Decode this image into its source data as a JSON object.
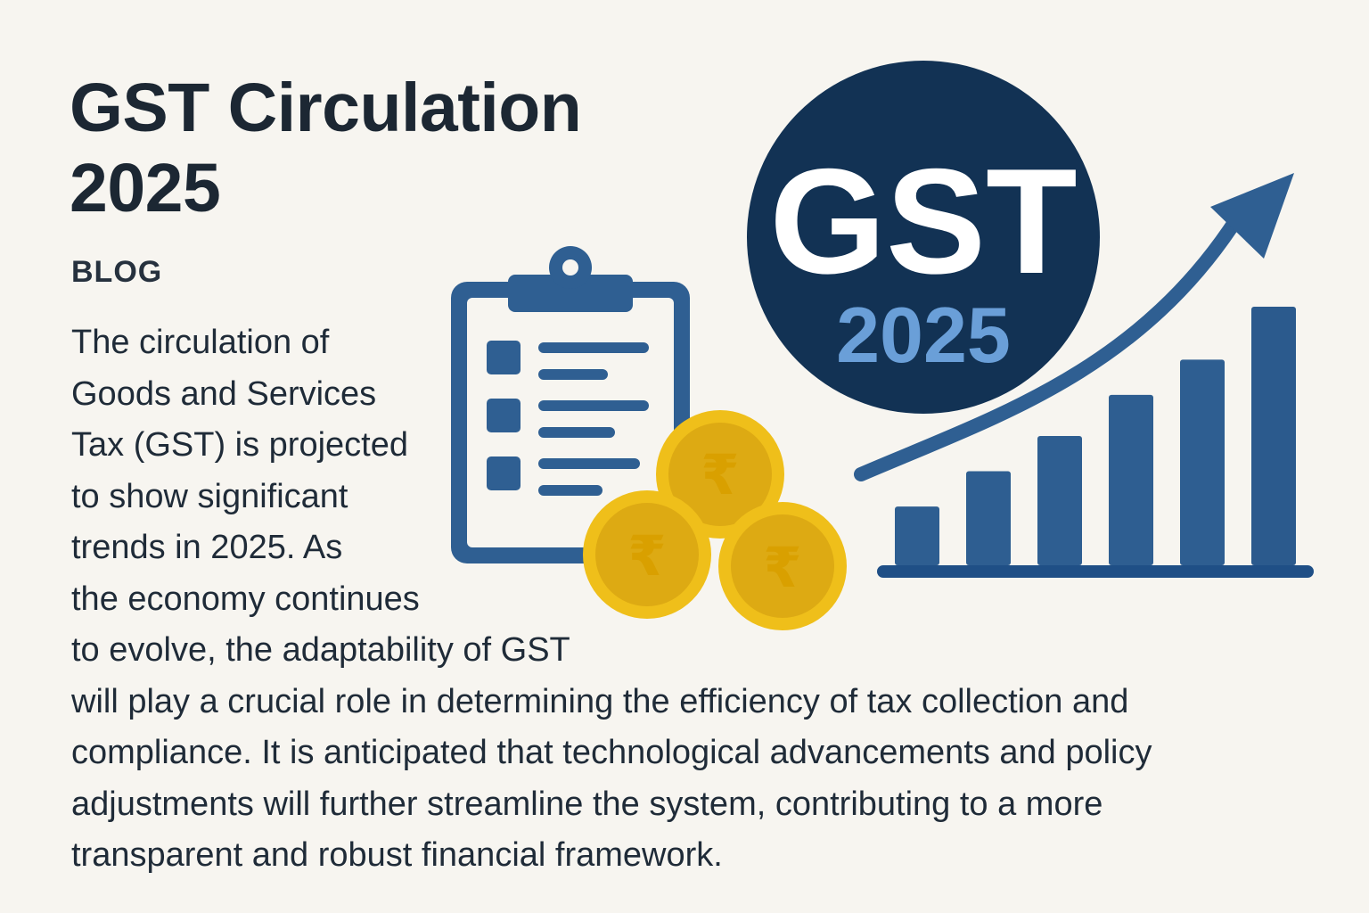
{
  "header": {
    "title": "GST Circulation 2025",
    "category": "BLOG"
  },
  "article": {
    "lines": [
      "The circulation of",
      "Goods and Services",
      "Tax (GST) is projected",
      "to show significant",
      "trends in 2025. As",
      "the economy continues",
      "to evolve, the adaptability of GST",
      "will play a crucial role in determining the efficiency of tax collection and",
      "compliance. It is anticipated that technological advancements and policy",
      "adjustments will further streamline the system, contributing to a more",
      "transparent and robust financial framework."
    ]
  },
  "badge": {
    "main": "GST",
    "year": "2025"
  },
  "coins": {
    "symbol": "₹"
  },
  "chart": {
    "type": "bar",
    "bar_values": [
      1.0,
      1.6,
      2.2,
      2.9,
      3.5,
      4.4
    ]
  },
  "colors": {
    "background": "#f7f5f0",
    "title": "#1c2733",
    "text": "#1f2b38",
    "navy": "#123254",
    "blue": "#2f5f92",
    "gold": "#efbf1a",
    "year_blue": "#6a9fd8"
  },
  "icons": {
    "clipboard": "clipboard-icon",
    "coins": "rupee-coin-icon",
    "trend": "trend-arrow-icon",
    "chart": "bar-chart-icon"
  }
}
